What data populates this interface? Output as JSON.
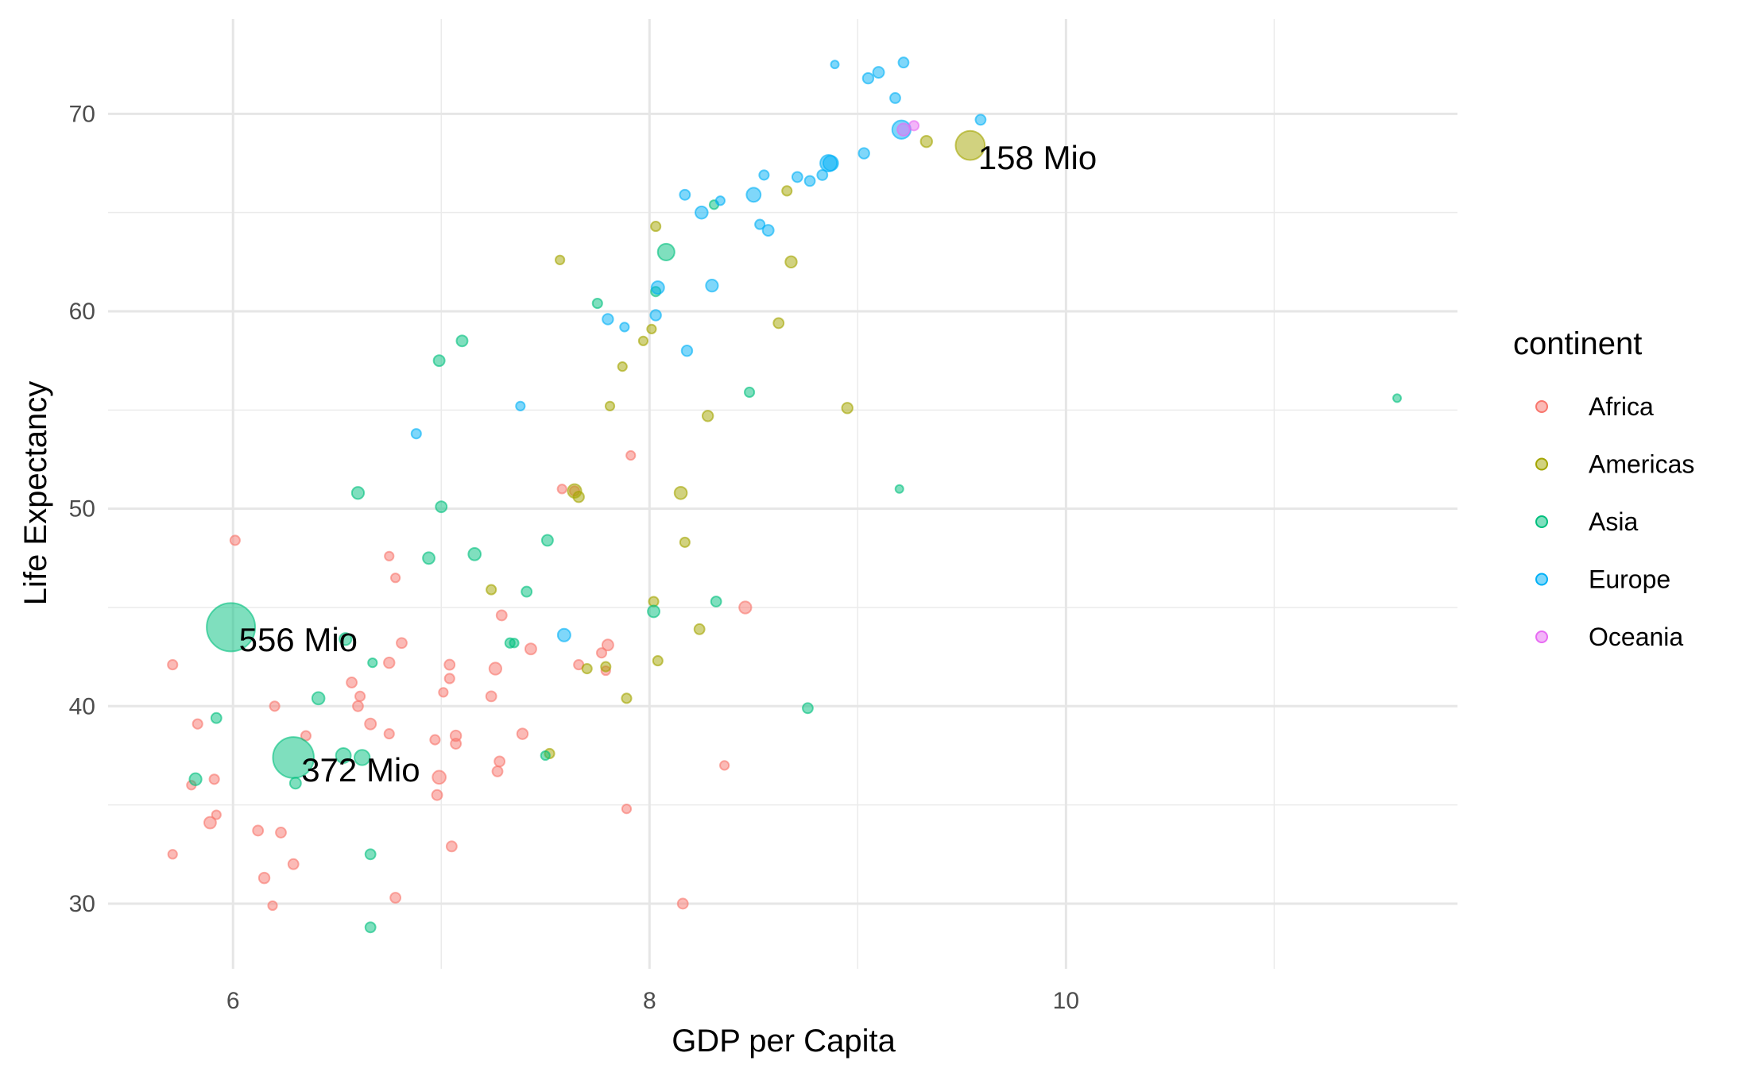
{
  "chart_data": {
    "type": "scatter",
    "xlabel": "GDP per Capita",
    "ylabel": "Life Expectancy",
    "xlim": [
      5.4,
      11.88
    ],
    "ylim": [
      26.7,
      74.8
    ],
    "xticks": [
      6,
      8,
      10
    ],
    "yticks": [
      30,
      40,
      50,
      60,
      70
    ],
    "grid": true,
    "legend": {
      "title": "continent",
      "placement": "right"
    },
    "colors": {
      "Africa": "#F8766D",
      "Americas": "#A3A500",
      "Asia": "#00BF7D",
      "Europe": "#00B0F6",
      "Oceania": "#E76BF3"
    },
    "point_alpha": 0.5,
    "size_variable": "population (Mio)",
    "series": [
      {
        "name": "Africa",
        "points": [
          [
            5.71,
            42.1,
            2
          ],
          [
            6.01,
            48.4,
            2
          ],
          [
            5.83,
            39.1,
            2
          ],
          [
            5.91,
            36.3,
            2
          ],
          [
            5.8,
            36.0,
            1
          ],
          [
            6.2,
            40.0,
            2
          ],
          [
            6.35,
            38.5,
            2
          ],
          [
            6.57,
            41.2,
            3
          ],
          [
            6.61,
            40.5,
            2
          ],
          [
            6.6,
            40.0,
            3
          ],
          [
            6.66,
            39.1,
            5
          ],
          [
            6.75,
            42.2,
            4
          ],
          [
            6.75,
            47.6,
            1
          ],
          [
            6.78,
            46.5,
            1
          ],
          [
            6.81,
            43.2,
            3
          ],
          [
            6.75,
            38.6,
            2
          ],
          [
            7.29,
            44.6,
            3
          ],
          [
            7.26,
            41.9,
            8
          ],
          [
            7.04,
            42.1,
            3
          ],
          [
            7.04,
            41.4,
            2
          ],
          [
            7.01,
            40.7,
            1
          ],
          [
            7.07,
            38.5,
            4
          ],
          [
            7.07,
            38.1,
            3
          ],
          [
            7.24,
            40.5,
            3
          ],
          [
            7.28,
            37.2,
            3
          ],
          [
            7.27,
            36.7,
            3
          ],
          [
            7.39,
            38.6,
            4
          ],
          [
            7.43,
            42.9,
            5
          ],
          [
            6.99,
            36.4,
            12
          ],
          [
            6.98,
            35.5,
            3
          ],
          [
            6.97,
            38.3,
            2
          ],
          [
            7.05,
            32.9,
            3
          ],
          [
            6.78,
            30.3,
            3
          ],
          [
            6.19,
            29.9,
            1
          ],
          [
            6.29,
            32.0,
            3
          ],
          [
            6.15,
            31.3,
            4
          ],
          [
            6.12,
            33.7,
            3
          ],
          [
            6.23,
            33.6,
            3
          ],
          [
            5.89,
            34.1,
            7
          ],
          [
            5.92,
            34.5,
            1
          ],
          [
            5.71,
            32.5,
            1
          ],
          [
            7.58,
            51.0,
            1
          ],
          [
            7.64,
            50.9,
            2
          ],
          [
            7.91,
            52.7,
            1
          ],
          [
            7.8,
            43.1,
            5
          ],
          [
            7.77,
            42.7,
            2
          ],
          [
            7.66,
            42.1,
            2
          ],
          [
            7.79,
            41.8,
            1
          ],
          [
            8.46,
            45.0,
            8
          ],
          [
            8.36,
            37.0,
            1
          ],
          [
            7.89,
            34.8,
            1
          ],
          [
            8.16,
            30.0,
            3
          ]
        ]
      },
      {
        "name": "Americas",
        "points": [
          [
            7.64,
            50.9,
            14
          ],
          [
            7.66,
            50.6,
            4
          ],
          [
            8.15,
            50.8,
            9
          ],
          [
            8.17,
            48.3,
            2
          ],
          [
            8.02,
            45.3,
            2
          ],
          [
            7.24,
            45.9,
            2
          ],
          [
            8.24,
            43.9,
            3
          ],
          [
            8.04,
            42.3,
            2
          ],
          [
            7.7,
            41.9,
            2
          ],
          [
            7.79,
            42.0,
            2
          ],
          [
            7.89,
            40.4,
            2
          ],
          [
            7.52,
            37.6,
            2
          ],
          [
            8.28,
            54.7,
            4
          ],
          [
            8.95,
            55.1,
            4
          ],
          [
            7.81,
            55.2,
            1
          ],
          [
            7.87,
            57.2,
            1
          ],
          [
            7.97,
            58.5,
            1
          ],
          [
            8.01,
            59.1,
            1
          ],
          [
            8.62,
            59.4,
            3
          ],
          [
            8.68,
            62.5,
            6
          ],
          [
            7.57,
            62.6,
            1
          ],
          [
            8.03,
            64.3,
            2
          ],
          [
            8.66,
            66.1,
            2
          ],
          [
            9.33,
            68.6,
            6
          ],
          [
            9.54,
            68.4,
            158
          ]
        ]
      },
      {
        "name": "Asia",
        "points": [
          [
            5.99,
            44.0,
            556
          ],
          [
            6.29,
            37.4,
            372
          ],
          [
            6.53,
            37.5,
            20
          ],
          [
            6.62,
            37.4,
            22
          ],
          [
            6.3,
            36.1,
            5
          ],
          [
            5.82,
            36.3,
            8
          ],
          [
            5.92,
            39.4,
            3
          ],
          [
            6.41,
            40.4,
            9
          ],
          [
            6.54,
            43.4,
            8
          ],
          [
            6.67,
            42.2,
            1
          ],
          [
            6.6,
            50.8,
            8
          ],
          [
            6.94,
            47.5,
            7
          ],
          [
            7.0,
            50.1,
            5
          ],
          [
            7.16,
            47.7,
            9
          ],
          [
            6.99,
            57.5,
            5
          ],
          [
            7.1,
            58.5,
            5
          ],
          [
            7.41,
            45.8,
            3
          ],
          [
            7.33,
            43.2,
            2
          ],
          [
            7.35,
            43.2,
            1
          ],
          [
            7.51,
            48.4,
            5
          ],
          [
            7.5,
            37.5,
            1
          ],
          [
            6.66,
            32.5,
            3
          ],
          [
            6.66,
            28.8,
            3
          ],
          [
            8.02,
            44.8,
            7
          ],
          [
            8.32,
            45.3,
            3
          ],
          [
            8.76,
            39.9,
            3
          ],
          [
            8.48,
            55.9,
            2
          ],
          [
            8.08,
            63.0,
            30
          ],
          [
            7.75,
            60.4,
            2
          ],
          [
            8.03,
            61.0,
            2
          ],
          [
            8.31,
            65.4,
            1
          ],
          [
            9.2,
            51.0,
            0.2
          ],
          [
            11.59,
            55.6,
            0.2
          ]
        ]
      },
      {
        "name": "Europe",
        "points": [
          [
            7.59,
            43.6,
            10
          ],
          [
            7.38,
            55.2,
            1
          ],
          [
            6.88,
            53.8,
            2
          ],
          [
            7.8,
            59.6,
            4
          ],
          [
            7.88,
            59.2,
            1
          ],
          [
            8.03,
            59.8,
            4
          ],
          [
            8.18,
            58.0,
            4
          ],
          [
            8.04,
            61.2,
            10
          ],
          [
            8.3,
            61.3,
            8
          ],
          [
            8.17,
            65.9,
            3
          ],
          [
            8.25,
            65.0,
            9
          ],
          [
            8.34,
            65.6,
            1
          ],
          [
            8.5,
            65.9,
            16
          ],
          [
            8.53,
            64.4,
            2
          ],
          [
            8.57,
            64.1,
            5
          ],
          [
            8.55,
            66.9,
            2
          ],
          [
            8.71,
            66.8,
            3
          ],
          [
            8.77,
            66.6,
            3
          ],
          [
            8.83,
            66.9,
            3
          ],
          [
            8.86,
            67.5,
            30
          ],
          [
            8.87,
            67.5,
            20
          ],
          [
            9.03,
            68.0,
            4
          ],
          [
            9.21,
            69.2,
            42
          ],
          [
            9.59,
            69.7,
            3
          ],
          [
            9.18,
            70.8,
            3
          ],
          [
            9.05,
            71.8,
            4
          ],
          [
            9.1,
            72.1,
            5
          ],
          [
            9.22,
            72.6,
            3
          ],
          [
            8.89,
            72.5,
            0.2
          ]
        ]
      },
      {
        "name": "Oceania",
        "points": [
          [
            9.27,
            69.4,
            2
          ],
          [
            9.22,
            69.2,
            9
          ]
        ]
      }
    ],
    "annotations": [
      {
        "text": "556 Mio",
        "x": 5.99,
        "y": 44.0
      },
      {
        "text": "372 Mio",
        "x": 6.29,
        "y": 37.4
      },
      {
        "text": "158 Mio",
        "x": 9.54,
        "y": 68.4
      }
    ]
  }
}
